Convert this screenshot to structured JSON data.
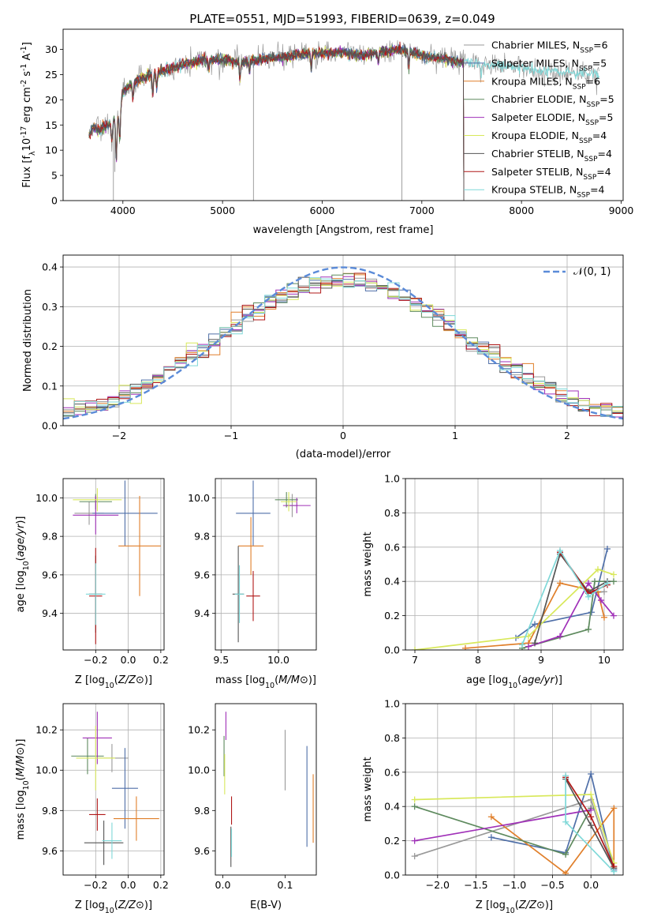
{
  "figure_title": "PLATE=0551, MJD=51993, FIBERID=0639, z=0.049",
  "models": [
    {
      "label": "Chabrier MILES, N_SSP=6",
      "base": "Chabrier MILES, N",
      "sub": "SSP",
      "tail": "=6",
      "color": "#999999"
    },
    {
      "label": "Salpeter MILES, N_SSP=5",
      "base": "Salpeter MILES, N",
      "sub": "SSP",
      "tail": "=5",
      "color": "#4f6fa8"
    },
    {
      "label": "Kroupa MILES, N_SSP=6",
      "base": "Kroupa MILES, N",
      "sub": "SSP",
      "tail": "=6",
      "color": "#e07f2a"
    },
    {
      "label": "Chabrier ELODIE, N_SSP=5",
      "base": "Chabrier ELODIE, N",
      "sub": "SSP",
      "tail": "=5",
      "color": "#5e8a5e"
    },
    {
      "label": "Salpeter ELODIE, N_SSP=5",
      "base": "Salpeter ELODIE, N",
      "sub": "SSP",
      "tail": "=5",
      "color": "#a030b8"
    },
    {
      "label": "Kroupa ELODIE, N_SSP=4",
      "base": "Kroupa ELODIE, N",
      "sub": "SSP",
      "tail": "=4",
      "color": "#d8e85a"
    },
    {
      "label": "Chabrier STELIB, N_SSP=4",
      "base": "Chabrier STELIB, N",
      "sub": "SSP",
      "tail": "=4",
      "color": "#555555"
    },
    {
      "label": "Salpeter STELIB, N_SSP=4",
      "base": "Salpeter STELIB, N",
      "sub": "SSP",
      "tail": "=4",
      "color": "#b01818"
    },
    {
      "label": "Kroupa STELIB, N_SSP=4",
      "base": "Kroupa STELIB, N",
      "sub": "SSP",
      "tail": "=4",
      "color": "#7fd8d8"
    }
  ],
  "chart_data": [
    {
      "id": "spectrum",
      "type": "line",
      "title": "PLATE=0551, MJD=51993, FIBERID=0639, z=0.049",
      "xlabel": "wavelength [Angstrom, rest frame]",
      "ylabel_parts": [
        "Flux [f",
        "λ",
        "10",
        "-17",
        " erg cm",
        "-2",
        " s",
        "-1",
        " A",
        "-1",
        "]"
      ],
      "xlim": [
        3400,
        9020
      ],
      "ylim": [
        0,
        34
      ],
      "xticks": [
        4000,
        5000,
        6000,
        7000,
        8000,
        9000
      ],
      "yticks": [
        0,
        5,
        10,
        15,
        20,
        25,
        30
      ],
      "grid": false,
      "legend": "upper-right",
      "continuum": [
        [
          3660,
          13
        ],
        [
          3700,
          14.5
        ],
        [
          3760,
          14
        ],
        [
          3850,
          15
        ],
        [
          3950,
          16
        ],
        [
          4000,
          21.5
        ],
        [
          4050,
          22.5
        ],
        [
          4150,
          24
        ],
        [
          4300,
          25
        ],
        [
          4450,
          26
        ],
        [
          4600,
          27
        ],
        [
          4800,
          27.8
        ],
        [
          5000,
          28
        ],
        [
          5200,
          27.5
        ],
        [
          5400,
          28
        ],
        [
          5600,
          28.5
        ],
        [
          5800,
          29
        ],
        [
          6000,
          29.2
        ],
        [
          6200,
          29.5
        ],
        [
          6400,
          28.8
        ],
        [
          6600,
          29.5
        ],
        [
          6800,
          30
        ],
        [
          7000,
          28.8
        ],
        [
          7200,
          28.2
        ],
        [
          7400,
          27.5
        ],
        [
          7600,
          27.2
        ],
        [
          7800,
          26.6
        ],
        [
          8000,
          26.2
        ],
        [
          8200,
          25.8
        ],
        [
          8400,
          25.5
        ],
        [
          8600,
          25.2
        ],
        [
          8780,
          25
        ]
      ],
      "lines": [
        [
          3889,
          -4
        ],
        [
          3934,
          -8
        ],
        [
          3969,
          -6
        ],
        [
          4102,
          -3
        ],
        [
          4300,
          -4
        ],
        [
          4340,
          -3
        ],
        [
          4861,
          -2
        ],
        [
          5175,
          -4
        ],
        [
          5270,
          -2
        ],
        [
          5890,
          -3
        ],
        [
          6563,
          -2
        ],
        [
          6870,
          -3
        ],
        [
          7600,
          -2
        ]
      ]
    },
    {
      "id": "residuals",
      "type": "histogram",
      "xlabel": "(data-model)/error",
      "ylabel": "Normed distribution",
      "xlim": [
        -2.5,
        2.5
      ],
      "ylim": [
        0,
        0.43
      ],
      "xticks": [
        -2,
        -1,
        0,
        1,
        2
      ],
      "yticks": [
        0.0,
        0.1,
        0.2,
        0.3,
        0.4
      ],
      "grid": true,
      "legend": "upper-right",
      "reference_label": "𝒩(0, 1)",
      "reference_color": "#5b8bd8",
      "bin_width": 0.1
    },
    {
      "id": "age_vs_Z",
      "type": "scatter",
      "xlabel": "Z [log10(Z/Z⊙)]",
      "ylabel": "age  [log10(age/yr)]",
      "xlim": [
        -0.4,
        0.22
      ],
      "ylim": [
        9.21,
        10.1
      ],
      "xticks": [
        -0.2,
        0.0,
        0.2
      ],
      "yticks": [
        9.4,
        9.6,
        9.8,
        10.0
      ],
      "grid": true,
      "points": [
        {
          "x": -0.24,
          "xerr": 0.09,
          "y": 9.92,
          "yerr": 0.06
        },
        {
          "x": -0.02,
          "xerr": 0.2,
          "y": 9.92,
          "yerr": 0.17
        },
        {
          "x": 0.07,
          "xerr": 0.13,
          "y": 9.75,
          "yerr": 0.26
        },
        {
          "x": -0.2,
          "xerr": 0.1,
          "y": 9.98,
          "yerr": 0.04
        },
        {
          "x": -0.2,
          "xerr": 0.14,
          "y": 9.91,
          "yerr": 0.1
        },
        {
          "x": -0.19,
          "xerr": 0.15,
          "y": 9.99,
          "yerr": 0.06
        },
        {
          "x": -0.2,
          "xerr": 0.04,
          "y": 9.5,
          "yerr": 0.2
        },
        {
          "x": -0.2,
          "xerr": 0.04,
          "y": 9.49,
          "yerr": 0.25
        },
        {
          "x": -0.2,
          "xerr": 0.06,
          "y": 9.5,
          "yerr": 0.16
        }
      ]
    },
    {
      "id": "age_vs_mass",
      "type": "scatter",
      "xlabel": "mass [log10(M/M⊙)]",
      "ylabel": "",
      "xlim": [
        9.45,
        10.33
      ],
      "ylim": [
        9.21,
        10.1
      ],
      "xticks": [
        9.5,
        10.0
      ],
      "yticks": [
        9.4,
        9.6,
        9.8,
        10.0
      ],
      "grid": true,
      "points": [
        {
          "x": 10.12,
          "xerr": 0.05,
          "y": 9.96,
          "yerr": 0.06
        },
        {
          "x": 9.78,
          "xerr": 0.15,
          "y": 9.92,
          "yerr": 0.17
        },
        {
          "x": 9.76,
          "xerr": 0.11,
          "y": 9.75,
          "yerr": 0.15
        },
        {
          "x": 10.07,
          "xerr": 0.1,
          "y": 9.99,
          "yerr": 0.04
        },
        {
          "x": 10.16,
          "xerr": 0.12,
          "y": 9.96,
          "yerr": 0.04
        },
        {
          "x": 10.09,
          "xerr": 0.07,
          "y": 9.98,
          "yerr": 0.05
        },
        {
          "x": 9.65,
          "xerr": 0.05,
          "y": 9.5,
          "yerr": 0.25
        },
        {
          "x": 9.78,
          "xerr": 0.06,
          "y": 9.49,
          "yerr": 0.13
        },
        {
          "x": 9.66,
          "xerr": 0.04,
          "y": 9.5,
          "yerr": 0.15
        }
      ]
    },
    {
      "id": "massweight_vs_age",
      "type": "line",
      "xlabel": "age  [log10(age/yr)]",
      "ylabel": "mass weight",
      "xlim": [
        6.85,
        10.3
      ],
      "ylim": [
        0,
        1
      ],
      "xticks": [
        7,
        8,
        9,
        10
      ],
      "yticks": [
        0.0,
        0.2,
        0.4,
        0.6,
        0.8,
        1.0
      ],
      "grid": true,
      "series": [
        {
          "x": [
            9.3,
            9.75,
            10.0
          ],
          "y": [
            0.57,
            0.33,
            0.34
          ]
        },
        {
          "x": [
            8.6,
            8.9,
            9.8,
            10.05
          ],
          "y": [
            0.07,
            0.15,
            0.22,
            0.59
          ]
        },
        {
          "x": [
            7.8,
            8.8,
            9.3,
            9.9,
            10.0
          ],
          "y": [
            0.01,
            0.04,
            0.39,
            0.34,
            0.19
          ]
        },
        {
          "x": [
            8.7,
            9.75,
            9.85,
            10.15
          ],
          "y": [
            0.01,
            0.12,
            0.4,
            0.4
          ]
        },
        {
          "x": [
            8.8,
            9.3,
            9.75,
            9.95,
            10.15
          ],
          "y": [
            0.02,
            0.08,
            0.39,
            0.29,
            0.2
          ]
        },
        {
          "x": [
            7.0,
            8.8,
            9.9,
            10.15
          ],
          "y": [
            0.0,
            0.08,
            0.47,
            0.44
          ]
        },
        {
          "x": [
            8.9,
            9.3,
            9.75,
            10.05
          ],
          "y": [
            0.04,
            0.56,
            0.34,
            0.4
          ]
        },
        {
          "x": [
            9.3,
            9.75,
            10.05
          ],
          "y": [
            0.57,
            0.33,
            0.38
          ]
        },
        {
          "x": [
            8.7,
            9.3,
            9.75,
            10.05
          ],
          "y": [
            0.03,
            0.58,
            0.31,
            0.39
          ]
        }
      ]
    },
    {
      "id": "mass_vs_Z",
      "type": "scatter",
      "xlabel": "Z [log10(Z/Z⊙)]",
      "ylabel": "mass [log10(M/M⊙)]",
      "xlim": [
        -0.4,
        0.22
      ],
      "ylim": [
        9.48,
        10.33
      ],
      "xticks": [
        -0.2,
        0.0,
        0.2
      ],
      "yticks": [
        9.6,
        9.8,
        10.0,
        10.2
      ],
      "grid": true,
      "points": [
        {
          "x": -0.1,
          "xerr": 0.1,
          "y": 10.06,
          "yerr": 0.07
        },
        {
          "x": -0.02,
          "xerr": 0.08,
          "y": 9.91,
          "yerr": 0.2
        },
        {
          "x": 0.05,
          "xerr": 0.14,
          "y": 9.76,
          "yerr": 0.11
        },
        {
          "x": -0.25,
          "xerr": 0.1,
          "y": 10.07,
          "yerr": 0.09
        },
        {
          "x": -0.19,
          "xerr": 0.09,
          "y": 10.16,
          "yerr": 0.13
        },
        {
          "x": -0.2,
          "xerr": 0.12,
          "y": 10.06,
          "yerr": 0.16
        },
        {
          "x": -0.15,
          "xerr": 0.12,
          "y": 9.64,
          "yerr": 0.11
        },
        {
          "x": -0.19,
          "xerr": 0.05,
          "y": 9.78,
          "yerr": 0.08
        },
        {
          "x": -0.1,
          "xerr": 0.06,
          "y": 9.65,
          "yerr": 0.09
        }
      ]
    },
    {
      "id": "mass_vs_EBV",
      "type": "scatter",
      "xlabel": "E(B-V)",
      "ylabel": "",
      "xlim": [
        -0.012,
        0.15
      ],
      "ylim": [
        9.48,
        10.33
      ],
      "xticks": [
        0.0,
        0.1
      ],
      "yticks": [
        9.6,
        9.8,
        10.0,
        10.2
      ],
      "grid": false,
      "points": [
        {
          "x": 0.1,
          "xerr": 0,
          "y": 10.05,
          "yerr": 0.15
        },
        {
          "x": 0.135,
          "xerr": 0,
          "y": 9.87,
          "yerr": 0.25
        },
        {
          "x": 0.145,
          "xerr": 0,
          "y": 9.81,
          "yerr": 0.17
        },
        {
          "x": 0.002,
          "xerr": 0,
          "y": 10.07,
          "yerr": 0.1
        },
        {
          "x": 0.005,
          "xerr": 0,
          "y": 10.22,
          "yerr": 0.07
        },
        {
          "x": 0.003,
          "xerr": 0,
          "y": 9.98,
          "yerr": 0.1
        },
        {
          "x": 0.013,
          "xerr": 0,
          "y": 9.62,
          "yerr": 0.1
        },
        {
          "x": 0.014,
          "xerr": 0,
          "y": 9.8,
          "yerr": 0.07
        },
        {
          "x": 0.014,
          "xerr": 0,
          "y": 9.64,
          "yerr": 0.07
        }
      ]
    },
    {
      "id": "massweight_vs_Z",
      "type": "line",
      "xlabel": "Z [log10(Z/Z⊙)]",
      "ylabel": "mass weight",
      "xlim": [
        -2.42,
        0.42
      ],
      "ylim": [
        0,
        1
      ],
      "xticks": [
        -2.0,
        -1.5,
        -1.0,
        -0.5,
        0.0
      ],
      "yticks": [
        0.0,
        0.2,
        0.4,
        0.6,
        0.8,
        1.0
      ],
      "grid": true,
      "series": [
        {
          "x": [
            -2.3,
            0.0,
            0.3
          ],
          "y": [
            0.11,
            0.44,
            0.03
          ]
        },
        {
          "x": [
            -1.3,
            -0.33,
            0.0,
            0.3
          ],
          "y": [
            0.22,
            0.13,
            0.59,
            0.03
          ]
        },
        {
          "x": [
            -1.3,
            -0.33,
            0.3,
            0.3
          ],
          "y": [
            0.34,
            0.01,
            0.39,
            0.04
          ]
        },
        {
          "x": [
            -2.3,
            -0.33,
            0.0
          ],
          "y": [
            0.4,
            0.12,
            0.39
          ]
        },
        {
          "x": [
            -2.3,
            0.0
          ],
          "y": [
            0.2,
            0.38
          ]
        },
        {
          "x": [
            -2.3,
            0.0,
            0.3
          ],
          "y": [
            0.44,
            0.47,
            0.07
          ]
        },
        {
          "x": [
            -0.33,
            0.0,
            0.3
          ],
          "y": [
            0.56,
            0.29,
            0.04
          ]
        },
        {
          "x": [
            -0.33,
            0.0,
            0.3
          ],
          "y": [
            0.57,
            0.34,
            0.05
          ]
        },
        {
          "x": [
            -0.33,
            -0.33,
            0.3
          ],
          "y": [
            0.58,
            0.31,
            0.02
          ]
        }
      ]
    }
  ]
}
